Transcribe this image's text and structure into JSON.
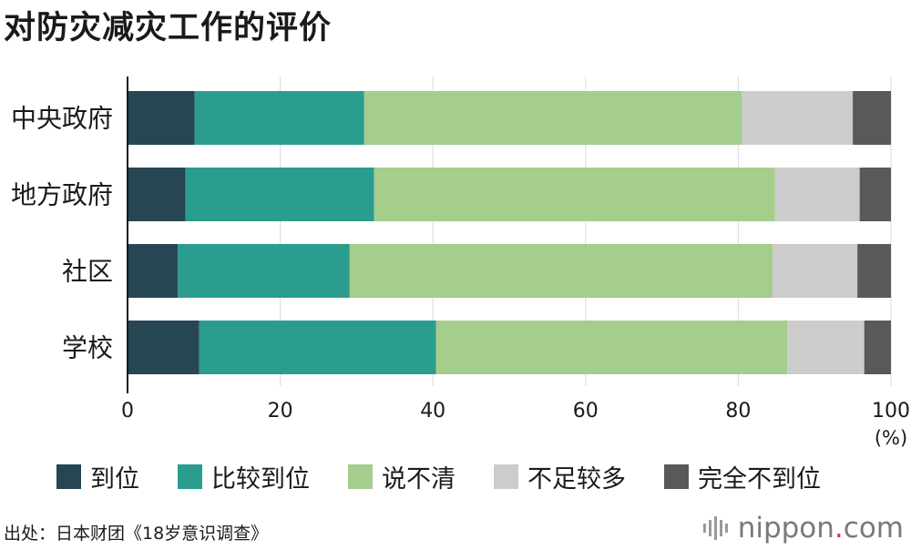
{
  "title": "对防灾减灾工作的评价",
  "source": "出处：日本财团《18岁意识调查》",
  "logo": {
    "name": "nippon",
    "dot": ".",
    "suffix": "com",
    "dot_color": "#e3343a",
    "icon": "sound-bars-icon"
  },
  "unit_label": "(%)",
  "chart_data": {
    "type": "bar",
    "orientation": "horizontal",
    "stacked": true,
    "title": "对防灾减灾工作的评价",
    "categories": [
      "中央政府",
      "地方政府",
      "社区",
      "学校"
    ],
    "series": [
      {
        "name": "到位",
        "color": "#264653",
        "values": [
          8.8,
          7.6,
          6.6,
          9.4
        ]
      },
      {
        "name": "比较到位",
        "color": "#2a9d8f",
        "values": [
          22.2,
          24.7,
          22.5,
          31.0
        ]
      },
      {
        "name": "说不清",
        "color": "#a5cd8b",
        "values": [
          49.5,
          52.5,
          55.4,
          46.0
        ]
      },
      {
        "name": "不足较多",
        "color": "#cccccc",
        "values": [
          14.5,
          11.1,
          11.1,
          10.1
        ]
      },
      {
        "name": "完全不到位",
        "color": "#595959",
        "values": [
          5.0,
          4.1,
          4.4,
          3.5
        ]
      }
    ],
    "xlim": [
      0,
      100
    ],
    "xticks": [
      0,
      20,
      40,
      60,
      80,
      100
    ],
    "xlabel": "(%)",
    "grid": true,
    "legend": "bottom"
  }
}
